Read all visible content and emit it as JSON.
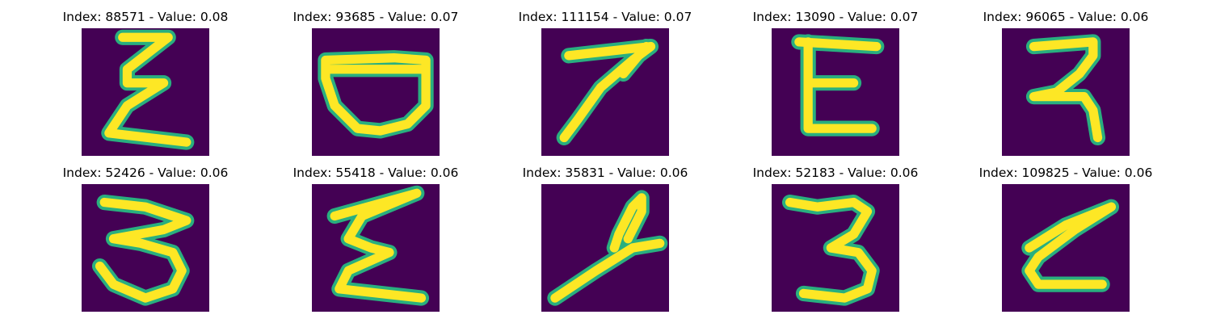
{
  "figure": {
    "background": "#440154",
    "stroke_color": "#fde725",
    "edge_color": "#29af7f",
    "items": [
      {
        "title": "Index: 88571 - Value: 0.08",
        "glyph": "sigma-like-three"
      },
      {
        "title": "Index: 93685 - Value: 0.07",
        "glyph": "bowl-shape"
      },
      {
        "title": "Index: 111154 - Value: 0.07",
        "glyph": "seven"
      },
      {
        "title": "Index: 13090 - Value: 0.07",
        "glyph": "letter-e"
      },
      {
        "title": "Index: 96065 - Value: 0.06",
        "glyph": "devanagari-like-two"
      },
      {
        "title": "Index: 52426 - Value: 0.06",
        "glyph": "sideways-m-three"
      },
      {
        "title": "Index: 55418 - Value: 0.06",
        "glyph": "zigzag-sigma"
      },
      {
        "title": "Index: 35831 - Value: 0.06",
        "glyph": "looped-stroke"
      },
      {
        "title": "Index: 52183 - Value: 0.06",
        "glyph": "three"
      },
      {
        "title": "Index: 109825 - Value: 0.06",
        "glyph": "letter-z"
      }
    ]
  }
}
